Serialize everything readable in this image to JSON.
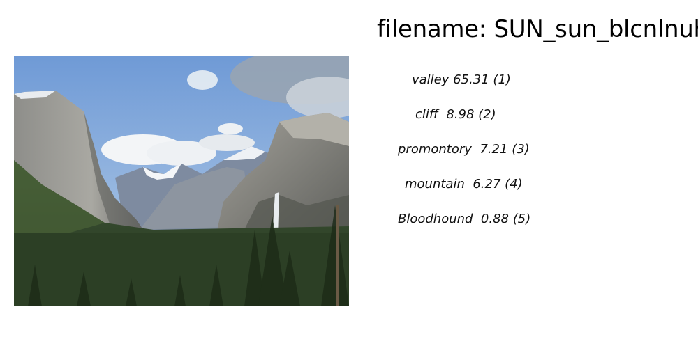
{
  "title": "filename: SUN_sun_blcnlnuh",
  "predictions": [
    {
      "label": "valley",
      "score": "65.31",
      "rank": "(1)"
    },
    {
      "label": "cliff",
      "score": "8.98",
      "rank": "(2)"
    },
    {
      "label": "promontory",
      "score": "7.21",
      "rank": "(3)"
    },
    {
      "label": "mountain",
      "score": "6.27",
      "rank": "(4)"
    },
    {
      "label": "Bloodhound",
      "score": "0.88",
      "rank": "(5)"
    }
  ],
  "image": {
    "subject": "mountain valley with granite cliffs, waterfall and pine forest"
  }
}
